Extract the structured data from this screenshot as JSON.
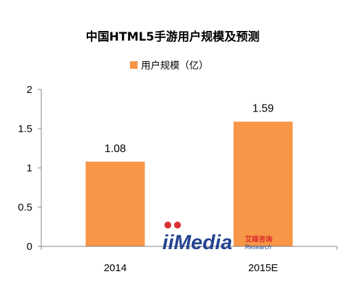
{
  "chart_data": {
    "type": "bar",
    "title": "中国HTML5手游用户规模及预测",
    "categories": [
      "2014",
      "2015E"
    ],
    "series": [
      {
        "name": "用户规模（亿）",
        "values": [
          1.08,
          1.59
        ],
        "data_labels": [
          "1.08",
          "1.59"
        ]
      }
    ],
    "ylim": [
      0,
      2
    ],
    "yticks": [
      0,
      0.5,
      1,
      1.5,
      2
    ],
    "ytick_labels": [
      "0",
      "0.5",
      "1",
      "1.5",
      "2"
    ],
    "xlabel": "",
    "ylabel": "",
    "grid": false,
    "legend_position": "top-center",
    "colors": {
      "bar": "#f79646",
      "axis": "#808080"
    }
  },
  "watermark": {
    "brand": "iiMedia",
    "cn": "艾媒咨询",
    "sub": "Research"
  }
}
